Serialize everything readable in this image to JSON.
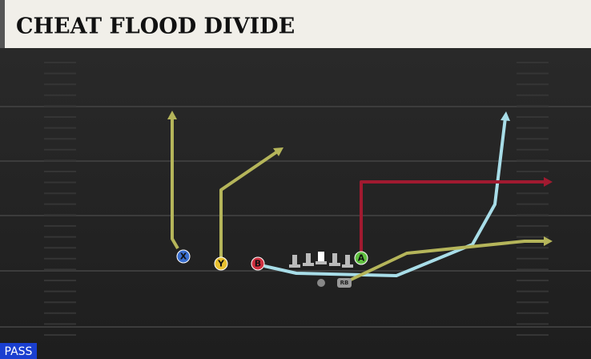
{
  "title": "CHEAT FLOOD DIVIDE",
  "players": [
    {
      "label": "X"
    },
    {
      "label": "Y"
    },
    {
      "label": "B"
    },
    {
      "label": "A"
    },
    {
      "label": "RB"
    }
  ],
  "play_type": "PASS"
}
